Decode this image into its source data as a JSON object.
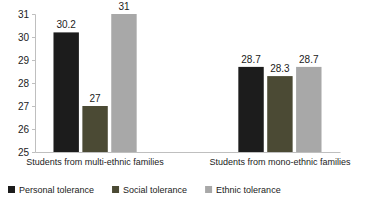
{
  "chart_data": {
    "type": "bar",
    "categories": [
      "Students from multi-ethnic families",
      "Students from mono-ethnic families"
    ],
    "series": [
      {
        "name": "Personal tolerance",
        "color": "#1c1c1c",
        "values": [
          30.2,
          28.7
        ]
      },
      {
        "name": "Social tolerance",
        "color": "#4b4a34",
        "values": [
          27,
          28.3
        ]
      },
      {
        "name": "Ethnic tolerance",
        "color": "#a8a8a8",
        "values": [
          31,
          28.7
        ]
      }
    ],
    "ylim": [
      25,
      31
    ],
    "yticks": [
      25,
      26,
      27,
      28,
      29,
      30,
      31
    ],
    "grid": false,
    "data_labels": true,
    "legend": "bottom"
  }
}
